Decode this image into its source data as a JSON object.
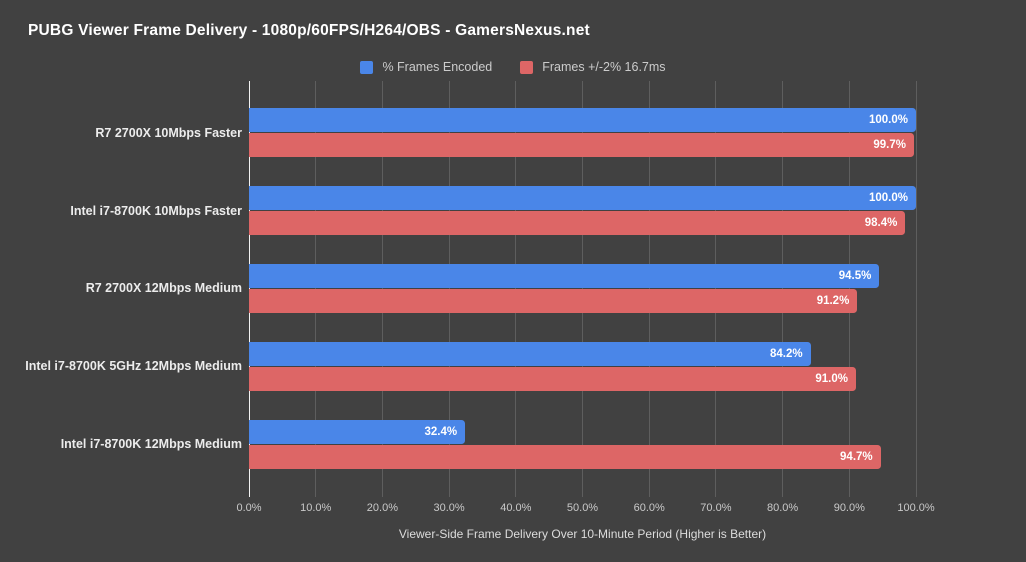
{
  "title": "PUBG Viewer Frame Delivery - 1080p/60FPS/H264/OBS - GamersNexus.net",
  "colors": {
    "background": "#414141",
    "gridline": "#5e5e5e",
    "zero_line": "#f2f2f2",
    "series_blue": "#4a86e8",
    "series_red": "#dd6666",
    "title_text": "#ffffff",
    "category_text": "#ececec",
    "tick_text": "#c9c9c9",
    "legend_text": "#cccccc",
    "value_text": "#ffffff"
  },
  "chart_data": {
    "type": "bar",
    "orientation": "horizontal",
    "title": "PUBG Viewer Frame Delivery - 1080p/60FPS/H264/OBS - GamersNexus.net",
    "xlabel": "Viewer-Side Frame Delivery Over 10-Minute Period (Higher is Better)",
    "ylabel": "",
    "xlim": [
      0,
      100
    ],
    "grid": true,
    "legend_position": "top",
    "value_suffix": "%",
    "categories": [
      "R7 2700X 10Mbps Faster",
      "Intel i7-8700K 10Mbps Faster",
      "R7 2700X 12Mbps Medium",
      "Intel i7-8700K 5GHz 12Mbps Medium",
      "Intel i7-8700K 12Mbps Medium"
    ],
    "x_ticks": [
      "0.0%",
      "10.0%",
      "20.0%",
      "30.0%",
      "40.0%",
      "50.0%",
      "60.0%",
      "70.0%",
      "80.0%",
      "90.0%",
      "100.0%"
    ],
    "series": [
      {
        "name": "% Frames Encoded",
        "color": "#4a86e8",
        "values": [
          100.0,
          100.0,
          94.5,
          84.2,
          32.4
        ],
        "value_labels": [
          "100.0%",
          "100.0%",
          "94.5%",
          "84.2%",
          "32.4%"
        ]
      },
      {
        "name": "Frames +/-2% 16.7ms",
        "color": "#dd6666",
        "values": [
          99.7,
          98.4,
          91.2,
          91.0,
          94.7
        ],
        "value_labels": [
          "99.7%",
          "98.4%",
          "91.2%",
          "91.0%",
          "94.7%"
        ]
      }
    ]
  }
}
